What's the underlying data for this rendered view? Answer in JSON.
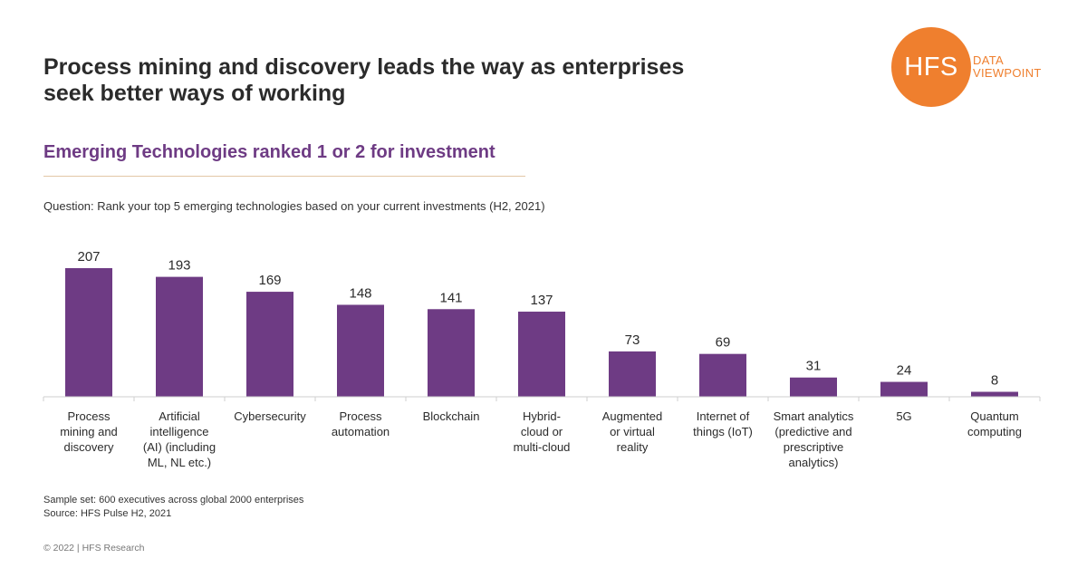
{
  "headline": {
    "line1": "Process mining and discovery leads the way as enterprises",
    "line2": "seek better ways of working"
  },
  "logo": {
    "mark": "HFS",
    "line1": "DATA",
    "line2": "VIEWPOINT"
  },
  "subtitle": "Emerging Technologies ranked 1 or 2 for investment",
  "question": "Question: Rank your top 5 emerging technologies based on your current investments (H2, 2021)",
  "chart_data": {
    "type": "bar",
    "categories": [
      [
        "Process",
        "mining and",
        "discovery"
      ],
      [
        "Artificial",
        "intelligence",
        "(AI) (including",
        "ML, NL etc.)"
      ],
      [
        "Cybersecurity"
      ],
      [
        "Process",
        "automation"
      ],
      [
        "Blockchain"
      ],
      [
        "Hybrid-",
        "cloud or",
        "multi-cloud"
      ],
      [
        "Augmented",
        "or virtual",
        "reality"
      ],
      [
        "Internet of",
        "things (IoT)"
      ],
      [
        "Smart analytics",
        "(predictive and",
        "prescriptive",
        "analytics)"
      ],
      [
        "5G"
      ],
      [
        "Quantum",
        "computing"
      ]
    ],
    "values": [
      207,
      193,
      169,
      148,
      141,
      137,
      73,
      69,
      31,
      24,
      8
    ],
    "ylim": [
      0,
      207
    ],
    "grid": false,
    "legend": "none",
    "bar_color": "#6e3b84"
  },
  "footnotes": {
    "sample": "Sample set: 600 executives across global 2000 enterprises",
    "source": "Source: HFS Pulse H2, 2021"
  },
  "copyright": "© 2022 | HFS Research",
  "colors": {
    "accent": "#6e3b84",
    "brand": "#ef7f2e"
  }
}
